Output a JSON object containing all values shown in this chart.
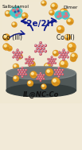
{
  "figsize": [
    1.03,
    1.89
  ],
  "dpi": 100,
  "bg_color": "#f2ead8",
  "label_salbutamol": "Salbutamol",
  "label_dimer": "Dimer",
  "label_reaction": "-2e/2H⁺",
  "label_co3": "Co (III)",
  "label_co2": "Co (II)",
  "label_bottom": "IL@NC-Co",
  "arrow_color": "#0d1a8c",
  "gold_color": "#e8a020",
  "gold_highlight": "#fdf5c0",
  "teal_color": "#45c8c8",
  "pink_color": "#e87080",
  "blue_dark": "#3050a0",
  "nano_body": "#d090d0",
  "nano_red": "#cc2020",
  "nano_white": "#f8e8e8",
  "nano_line": "#9090a0",
  "electrode_top": "#707878",
  "electrode_mid": "#505858",
  "electrode_dark": "#353d3d",
  "text_dark": "#101010",
  "text_blue": "#0d1a8c"
}
